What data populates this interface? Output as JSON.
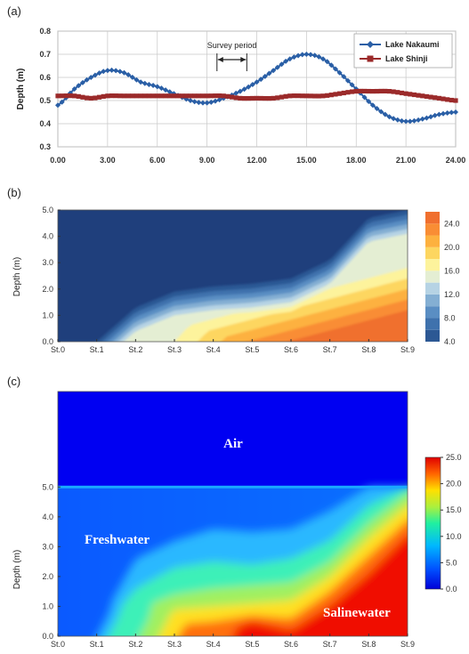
{
  "chart_data": [
    {
      "panel": "(a)",
      "type": "line",
      "ylabel": "Depth (m)",
      "xlim": [
        0,
        24
      ],
      "ylim": [
        0.3,
        0.8
      ],
      "xticks": [
        "0.00",
        "3.00",
        "6.00",
        "9.00",
        "12.00",
        "15.00",
        "18.00",
        "21.00",
        "24.00"
      ],
      "yticks": [
        "0.3",
        "0.4",
        "0.5",
        "0.6",
        "0.7",
        "0.8"
      ],
      "grid": true,
      "legend": "top-right",
      "annotation": "Survey period",
      "survey_period": [
        9.6,
        11.4
      ],
      "series": [
        {
          "name": "Lake Nakaumi",
          "color": "#2a5fa6",
          "marker": "diamond",
          "x": [
            0,
            1,
            2,
            3,
            4,
            5,
            6,
            7,
            8,
            9,
            10,
            11,
            12,
            13,
            14,
            15,
            16,
            17,
            18,
            19,
            20,
            21,
            22,
            23,
            24
          ],
          "y": [
            0.48,
            0.55,
            0.6,
            0.63,
            0.62,
            0.58,
            0.56,
            0.53,
            0.5,
            0.49,
            0.51,
            0.54,
            0.58,
            0.63,
            0.68,
            0.7,
            0.68,
            0.62,
            0.55,
            0.48,
            0.43,
            0.41,
            0.42,
            0.44,
            0.45
          ]
        },
        {
          "name": "Lake Shinji",
          "color": "#9b2a2a",
          "marker": "square",
          "x": [
            0,
            1,
            2,
            3,
            4,
            5,
            6,
            7,
            8,
            9,
            10,
            11,
            12,
            13,
            14,
            15,
            16,
            17,
            18,
            19,
            20,
            21,
            22,
            23,
            24
          ],
          "y": [
            0.52,
            0.52,
            0.51,
            0.52,
            0.52,
            0.52,
            0.52,
            0.52,
            0.52,
            0.52,
            0.52,
            0.51,
            0.51,
            0.51,
            0.52,
            0.52,
            0.52,
            0.53,
            0.54,
            0.54,
            0.54,
            0.53,
            0.52,
            0.51,
            0.5
          ]
        }
      ]
    },
    {
      "panel": "(b)",
      "type": "heatmap",
      "ylabel": "Depth (m)",
      "categories": [
        "St.0",
        "St.1",
        "St.2",
        "St.3",
        "St.4",
        "St.5",
        "St.6",
        "St.7",
        "St.8",
        "St.9"
      ],
      "yticks": [
        "0.0",
        "1.0",
        "2.0",
        "3.0",
        "4.0",
        "5.0"
      ],
      "ylim": [
        0,
        5
      ],
      "colorbar_ticks": [
        "4.0",
        "8.0",
        "12.0",
        "16.0",
        "20.0",
        "24.0"
      ],
      "colorbar_range": [
        4,
        26
      ],
      "halocline_top": [
        0,
        0,
        1.3,
        1.9,
        2.1,
        2.2,
        2.4,
        3.1,
        4.7,
        5.0
      ],
      "levels": [
        4,
        6,
        8,
        10,
        12,
        14,
        16,
        18,
        20,
        22,
        24
      ],
      "colors": [
        "#1f3f7c",
        "#2c5894",
        "#3f72ad",
        "#5a8ec3",
        "#84afd3",
        "#b6d3e4",
        "#e4eed3",
        "#fdf39c",
        "#fdd660",
        "#fdb13f",
        "#f98d34",
        "#f06f2e"
      ]
    },
    {
      "panel": "(c)",
      "type": "heatmap",
      "ylabel": "Depth (m)",
      "categories": [
        "St.0",
        "St.1",
        "St.2",
        "St.3",
        "St.4",
        "St.5",
        "St.6",
        "St.7",
        "St.8",
        "St.9"
      ],
      "yticks": [
        "0.0",
        "1.0",
        "2.0",
        "3.0",
        "4.0",
        "5.0"
      ],
      "ylim": [
        0,
        8.2
      ],
      "water_surface": 5.0,
      "colorbar_ticks": [
        "0.0",
        "5.0",
        "10.0",
        "15.0",
        "20.0",
        "25.0"
      ],
      "colorbar_range": [
        0,
        25
      ],
      "labels": {
        "air": "Air",
        "fresh": "Freshwater",
        "saline": "Salinewater"
      }
    }
  ]
}
